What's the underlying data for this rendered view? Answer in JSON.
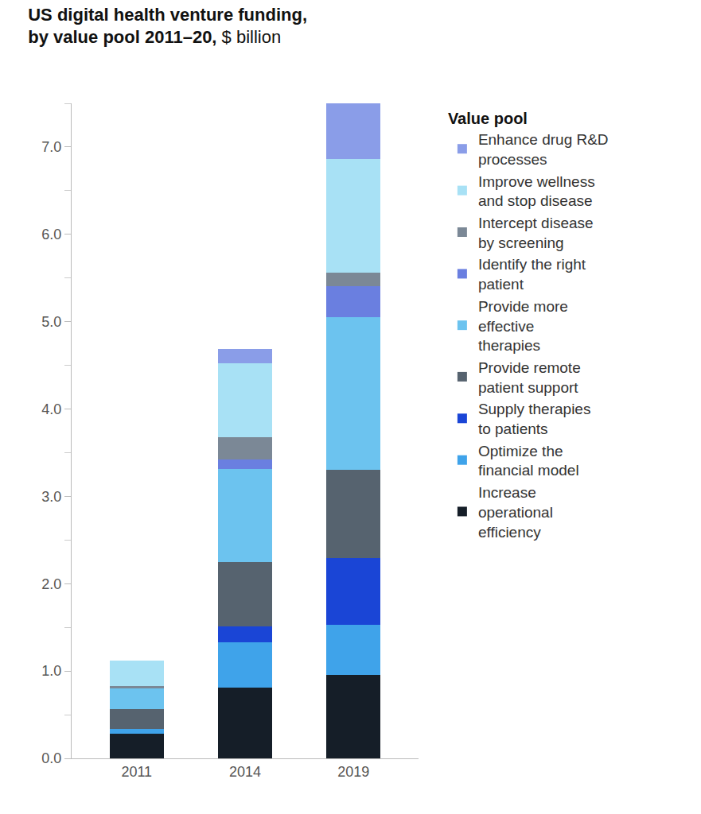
{
  "chart_data": {
    "type": "bar",
    "stacked": true,
    "title": "US digital health venture funding, by value pool 2011–20,",
    "subtitle": "$ billion",
    "legend_title": "Value pool",
    "legend": "right",
    "grid": false,
    "categories": [
      "2011",
      "2014",
      "2019"
    ],
    "ylim": [
      0,
      7.5
    ],
    "yticks": [
      {
        "value": 0,
        "label": "0.0"
      },
      {
        "value": 1,
        "label": "1.0"
      },
      {
        "value": 2,
        "label": "2.0"
      },
      {
        "value": 3,
        "label": "3.0"
      },
      {
        "value": 4,
        "label": "4.0"
      },
      {
        "value": 5,
        "label": "5.0"
      },
      {
        "value": 6,
        "label": "6.0"
      },
      {
        "value": 7,
        "label": "7.0"
      }
    ],
    "series": [
      {
        "name": "Increase operational efficiency",
        "color": "#151e28",
        "values": [
          0.28,
          0.81,
          0.96
        ]
      },
      {
        "name": "Optimize the financial model",
        "color": "#3fa3ea",
        "values": [
          0.06,
          0.52,
          0.57
        ]
      },
      {
        "name": "Supply therapies to patients",
        "color": "#1a45d6",
        "values": [
          0,
          0.18,
          0.76
        ]
      },
      {
        "name": "Provide remote patient support",
        "color": "#56636f",
        "values": [
          0.22,
          0.74,
          1.01
        ]
      },
      {
        "name": "Provide more effective therapies",
        "color": "#6cc3ef",
        "values": [
          0.24,
          1.06,
          1.75
        ]
      },
      {
        "name": "Identify the right patient",
        "color": "#6a7fe0",
        "values": [
          0,
          0.11,
          0.36
        ]
      },
      {
        "name": "Intercept disease by screening",
        "color": "#7b8896",
        "values": [
          0.03,
          0.26,
          0.15
        ]
      },
      {
        "name": "Improve wellness and stop disease",
        "color": "#a8e1f5",
        "values": [
          0.29,
          0.84,
          1.3
        ]
      },
      {
        "name": "Enhance drug R&D processes",
        "color": "#8a9de8",
        "values": [
          0,
          0.17,
          0.64
        ]
      }
    ]
  }
}
